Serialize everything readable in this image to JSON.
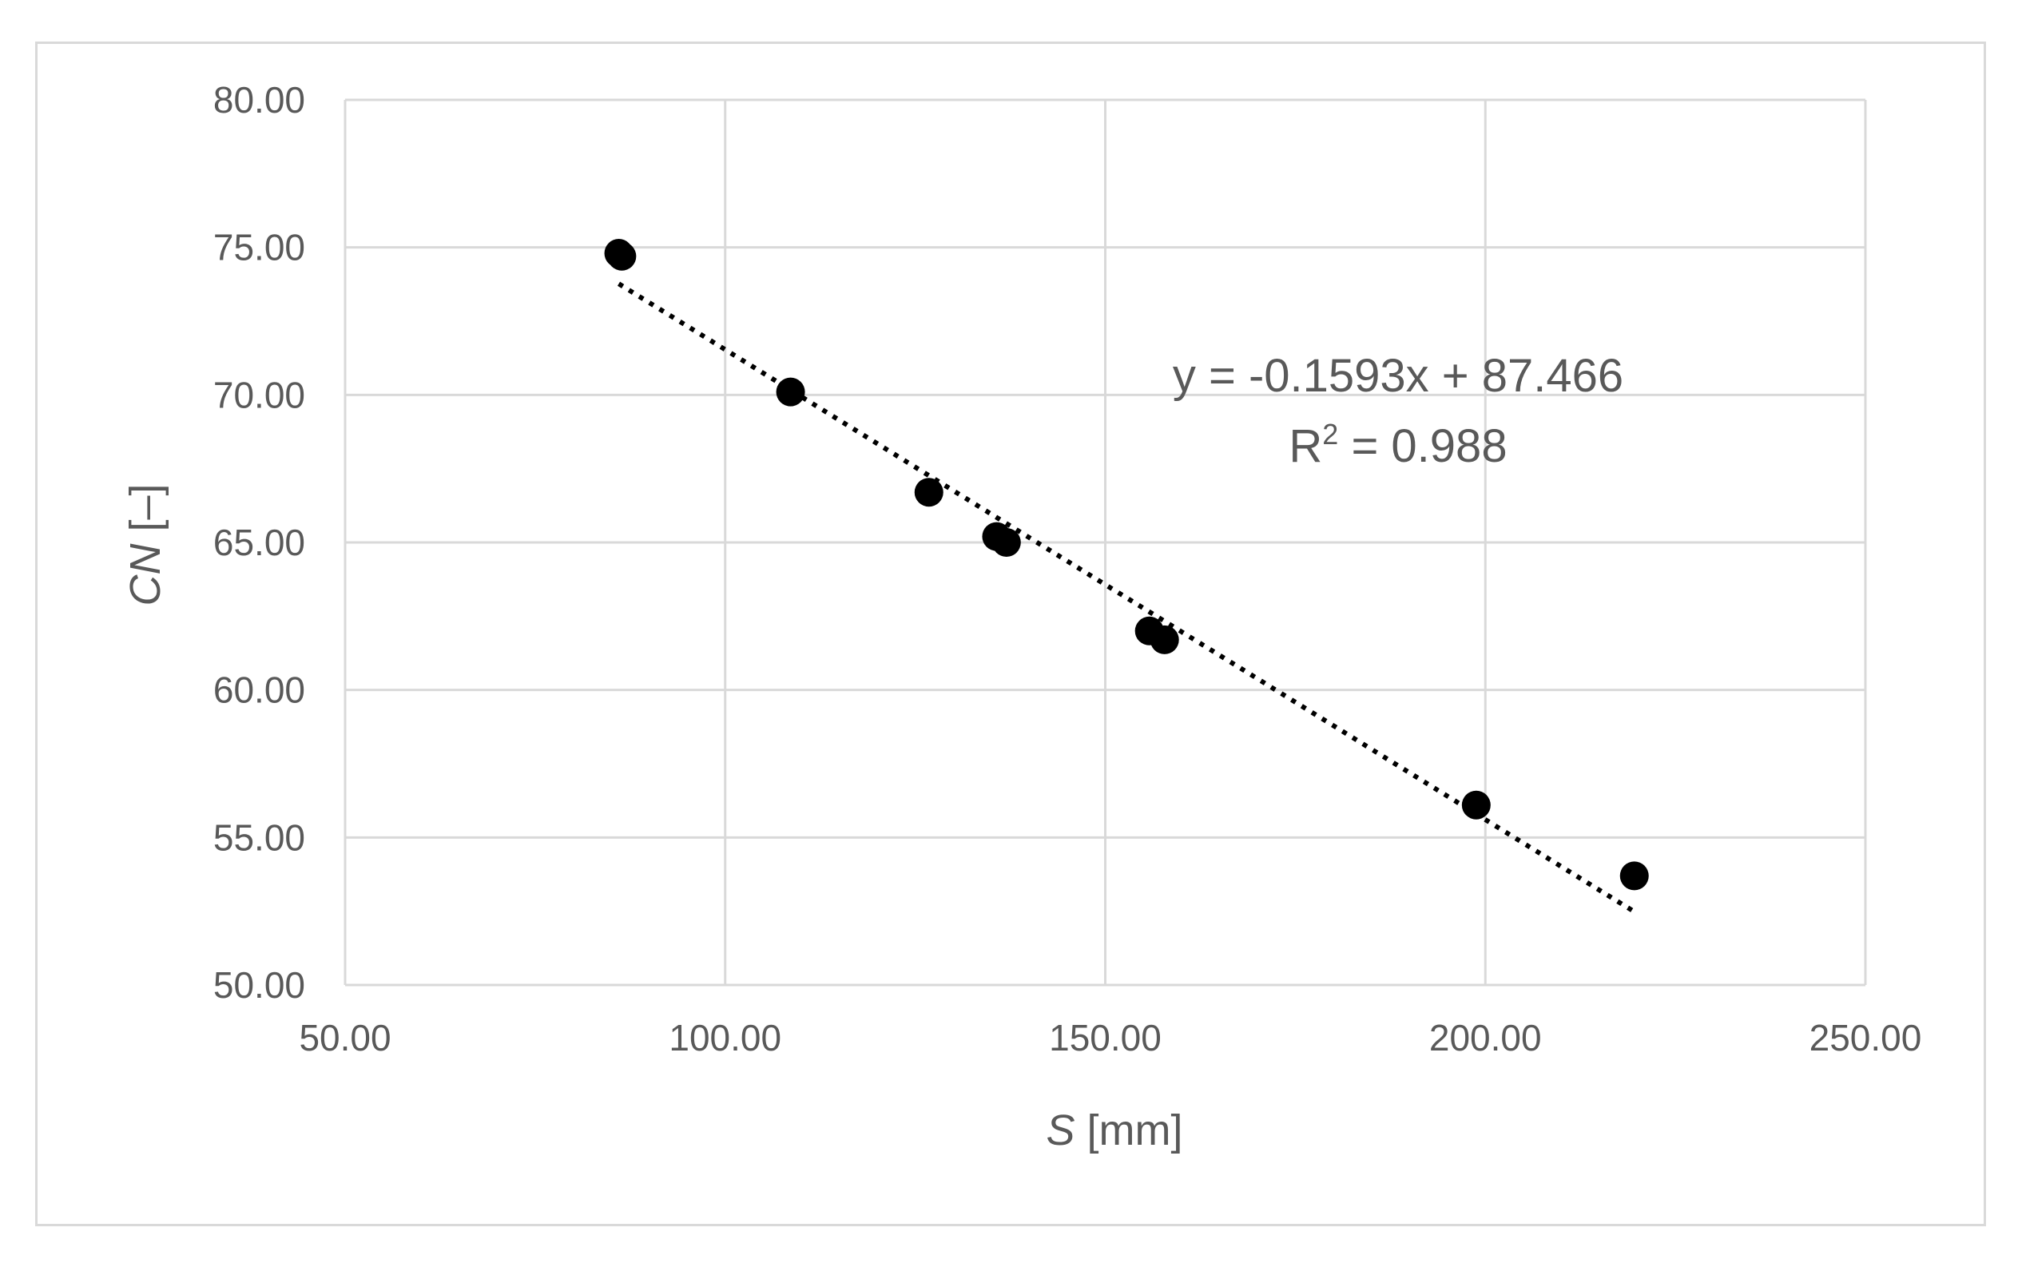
{
  "chart_data": {
    "type": "scatter",
    "title": "",
    "xlabel_italic": "S",
    "xlabel_rest": " [mm]",
    "ylabel_italic": "CN",
    "ylabel_rest": " [–]",
    "xlim": [
      50,
      250
    ],
    "ylim": [
      50,
      80
    ],
    "x_ticks": [
      "50.00",
      "100.00",
      "150.00",
      "200.00",
      "250.00"
    ],
    "y_ticks": [
      "50.00",
      "55.00",
      "60.00",
      "65.00",
      "70.00",
      "75.00",
      "80.00"
    ],
    "x_tick_values": [
      50,
      100,
      150,
      200,
      250
    ],
    "y_tick_values": [
      50,
      55,
      60,
      65,
      70,
      75,
      80
    ],
    "grid": true,
    "legend": "none",
    "series": [
      {
        "points": [
          {
            "x": 86.0,
            "y": 74.8
          },
          {
            "x": 86.4,
            "y": 74.7
          },
          {
            "x": 108.6,
            "y": 70.1
          },
          {
            "x": 126.8,
            "y": 66.7
          },
          {
            "x": 135.7,
            "y": 65.2
          },
          {
            "x": 137.0,
            "y": 65.0
          },
          {
            "x": 155.8,
            "y": 62.0
          },
          {
            "x": 157.8,
            "y": 61.7
          },
          {
            "x": 198.8,
            "y": 56.1
          },
          {
            "x": 219.6,
            "y": 53.7
          }
        ],
        "color": "#000000"
      }
    ],
    "trendline": {
      "slope": -0.1593,
      "intercept": 87.466,
      "x_range": [
        86,
        220
      ],
      "style": "dotted",
      "color": "#000000"
    },
    "annotation": {
      "equation": "y = -0.1593x + 87.466",
      "r2_prefix": "R",
      "r2_sup": "2",
      "r2_rest": " = 0.988"
    },
    "colors": {
      "grid": "#d9d9d9",
      "text": "#595959",
      "frame": "#d9d9d9"
    }
  }
}
